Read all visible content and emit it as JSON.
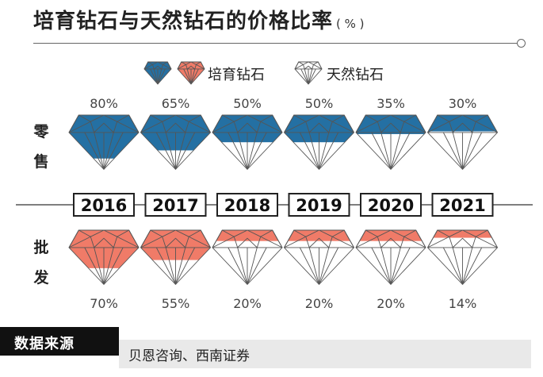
{
  "header": {
    "title": "培育钻石与天然钻石的价格比率",
    "unit": "( % )"
  },
  "legend": {
    "series_label": "培育钻石",
    "compare_label": "天然钻石"
  },
  "source": {
    "label": "数据来源",
    "text": "贝恩咨询、西南证券"
  },
  "colors": {
    "retail": "#2470a3",
    "wholesale": "#f07b68",
    "outline": "#555555",
    "axis": "#333333"
  },
  "chart_data": {
    "type": "table",
    "title": "培育钻石与天然钻石的价格比率",
    "unit": "%",
    "categories": [
      "2016",
      "2017",
      "2018",
      "2019",
      "2020",
      "2021"
    ],
    "series": [
      {
        "name": "零售",
        "value_labels": [
          "80%",
          "65%",
          "50%",
          "50%",
          "35%",
          "30%"
        ],
        "values": [
          80,
          65,
          50,
          50,
          35,
          30
        ]
      },
      {
        "name": "批发",
        "value_labels": [
          "70%",
          "55%",
          "20%",
          "20%",
          "20%",
          "14%"
        ],
        "values": [
          70,
          55,
          20,
          20,
          20,
          14
        ]
      }
    ],
    "row_labels": [
      [
        "零",
        "售"
      ],
      [
        "批",
        "发"
      ]
    ]
  }
}
